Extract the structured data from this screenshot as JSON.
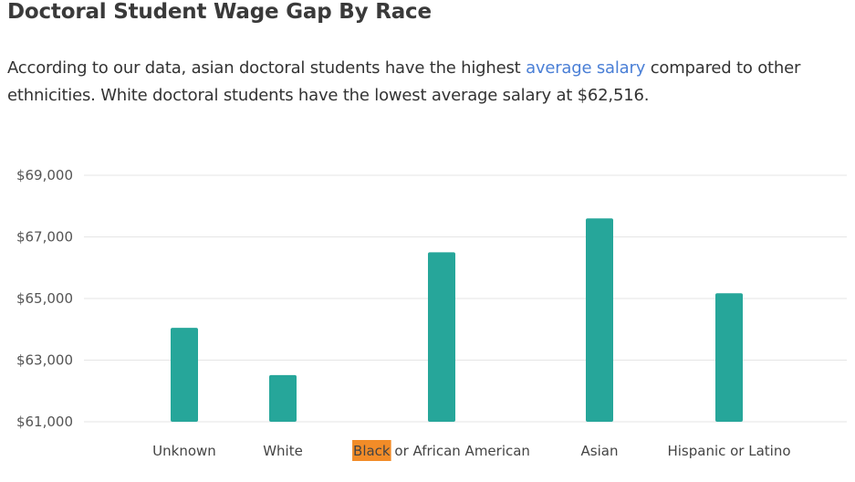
{
  "page": {
    "title": "Doctoral Student Wage Gap By Race",
    "description": {
      "before_link": "According to our data, asian doctoral students have the highest ",
      "link_text": "average salary",
      "after_link": " compared to other ethnicities. White doctoral students have the lowest average salary at $62,516."
    }
  },
  "colors": {
    "bar": "#26a69a",
    "grid": "#e6e6e6",
    "highlight": "#f28c28",
    "link": "#4a7fd6"
  },
  "chart_data": {
    "type": "bar",
    "title": "",
    "xlabel": "",
    "ylabel": "",
    "categories": [
      "Unknown",
      "White",
      "Black or African American",
      "Asian",
      "Hispanic or Latino"
    ],
    "highlighted_word": {
      "category_index": 2,
      "text": "Black",
      "rest": " or African American"
    },
    "values": [
      64050,
      62516,
      66500,
      67600,
      65170
    ],
    "ylim": [
      61000,
      69000
    ],
    "yticks": [
      61000,
      63000,
      65000,
      67000,
      69000
    ],
    "ytick_labels": [
      "$61,000",
      "$63,000",
      "$65,000",
      "$67,000",
      "$69,000"
    ],
    "grid": true,
    "legend": "none"
  }
}
